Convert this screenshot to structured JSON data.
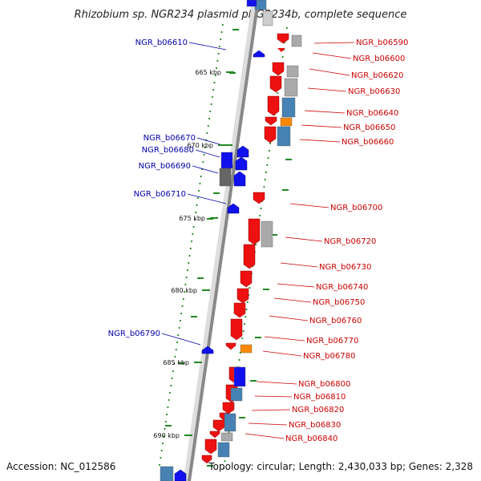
{
  "title": "Rhizobium sp. NGR234 plasmid pNGR234b, complete sequence",
  "footer": {
    "accession": "Accession: NC_012586",
    "topology": "Topology: circular; Length: 2,430,033 bp; Genes: 2,328"
  },
  "kbp_ticks": [
    "665 kbp",
    "670 kbp",
    "675 kbp",
    "680 kbp",
    "685 kbp",
    "690 kbp"
  ],
  "colors": {
    "forward_gene": "#ee1111",
    "reverse_gene": "#1111ee",
    "steel": "#4682b4",
    "grey": "#aaaaaa",
    "orange": "#ff8800",
    "label_forward": "#cc0000",
    "label_reverse": "#0000aa"
  },
  "labels_forward": [
    "NGR_b06590",
    "NGR_b06600",
    "NGR_b06620",
    "NGR_b06630",
    "NGR_b06640",
    "NGR_b06650",
    "NGR_b06660",
    "NGR_b06700",
    "NGR_b06720",
    "NGR_b06730",
    "NGR_b06740",
    "NGR_b06750",
    "NGR_b06760",
    "NGR_b06770",
    "NGR_b06780",
    "NGR_b06800",
    "NGR_b06810",
    "NGR_b06820",
    "NGR_b06830",
    "NGR_b06840"
  ],
  "labels_reverse": [
    "NGR_b06610",
    "NGR_b06670",
    "NGR_b06680",
    "NGR_b06690",
    "NGR_b06710",
    "NGR_b06790"
  ]
}
